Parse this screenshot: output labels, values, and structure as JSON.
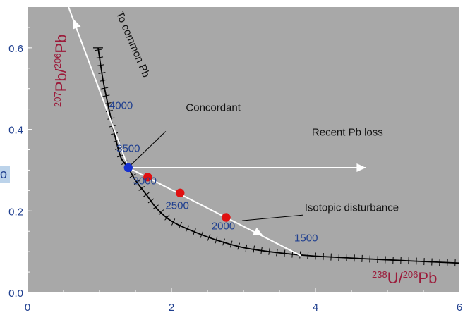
{
  "chart_data": {
    "type": "line",
    "xlabel": {
      "sup": "238",
      "main": "U/",
      "sup2": "206",
      "tail": "Pb"
    },
    "ylabel": {
      "sup": "207",
      "main": "Pb/",
      "sup2": "206",
      "tail": "Pb"
    },
    "xlim": [
      0,
      6
    ],
    "ylim": [
      0.0,
      0.7
    ],
    "x_ticks": [
      "0",
      "2",
      "4",
      "6"
    ],
    "y_ticks": [
      "0.0",
      "0.2",
      "0.4",
      "0.6"
    ],
    "grid": false,
    "colors": {
      "plot_bg": "#a8a8a8",
      "curve": "#000000",
      "arrows": "#ffffff",
      "point_concordant": "#1530d0",
      "point_disturbed": "#e01010",
      "labels": "#1f3f8f",
      "axis_titles": "#9b1b3a"
    },
    "concordia_ages": [
      {
        "label": "4000",
        "x": 1.3,
        "y": 0.45
      },
      {
        "label": "3500",
        "x": 1.4,
        "y": 0.345
      },
      {
        "label": "3000",
        "x": 1.63,
        "y": 0.265
      },
      {
        "label": "2500",
        "x": 2.08,
        "y": 0.205
      },
      {
        "label": "2000",
        "x": 2.72,
        "y": 0.155
      },
      {
        "label": "1500",
        "x": 3.87,
        "y": 0.125
      }
    ],
    "concordia_curve": [
      {
        "x": 0.98,
        "y": 0.6
      },
      {
        "x": 1.05,
        "y": 0.52
      },
      {
        "x": 1.13,
        "y": 0.45
      },
      {
        "x": 1.22,
        "y": 0.38
      },
      {
        "x": 1.3,
        "y": 0.33
      },
      {
        "x": 1.4,
        "y": 0.305
      },
      {
        "x": 1.5,
        "y": 0.275
      },
      {
        "x": 1.65,
        "y": 0.24
      },
      {
        "x": 1.8,
        "y": 0.205
      },
      {
        "x": 2.0,
        "y": 0.175
      },
      {
        "x": 2.3,
        "y": 0.15
      },
      {
        "x": 2.6,
        "y": 0.13
      },
      {
        "x": 3.0,
        "y": 0.11
      },
      {
        "x": 3.5,
        "y": 0.097
      },
      {
        "x": 4.0,
        "y": 0.089
      },
      {
        "x": 5.0,
        "y": 0.08
      },
      {
        "x": 6.0,
        "y": 0.072
      }
    ],
    "points": [
      {
        "name": "concordant",
        "x": 1.4,
        "y": 0.306,
        "color": "#1530d0"
      },
      {
        "name": "disturbed",
        "x": 1.67,
        "y": 0.283,
        "color": "#e01010"
      },
      {
        "name": "disturbed",
        "x": 2.12,
        "y": 0.244,
        "color": "#e01010"
      },
      {
        "name": "disturbed",
        "x": 2.76,
        "y": 0.184,
        "color": "#e01010"
      }
    ],
    "arrows": [
      {
        "from": [
          1.4,
          0.306
        ],
        "to": [
          0.57,
          0.7
        ],
        "mid_arrow_at": [
          0.64,
          0.67
        ]
      },
      {
        "from": [
          1.4,
          0.306
        ],
        "to": [
          4.7,
          0.306
        ]
      },
      {
        "from": [
          1.4,
          0.306
        ],
        "to": [
          3.8,
          0.09
        ],
        "mid_arrow_at": [
          3.27,
          0.14
        ]
      }
    ],
    "annotations": [
      {
        "text": "To common Pb",
        "x": 1.23,
        "y": 0.685,
        "rotate": 67
      },
      {
        "text": "Concordant",
        "x": 2.2,
        "y": 0.445
      },
      {
        "text": "Recent Pb loss",
        "x": 3.95,
        "y": 0.385
      },
      {
        "text": "Isotopic disturbance",
        "x": 3.85,
        "y": 0.2
      }
    ],
    "leader_lines": [
      {
        "from": [
          1.92,
          0.395
        ],
        "to": [
          1.42,
          0.31
        ]
      },
      {
        "from": [
          3.83,
          0.19
        ],
        "to": [
          2.98,
          0.176
        ]
      }
    ],
    "partial_label": "o"
  }
}
